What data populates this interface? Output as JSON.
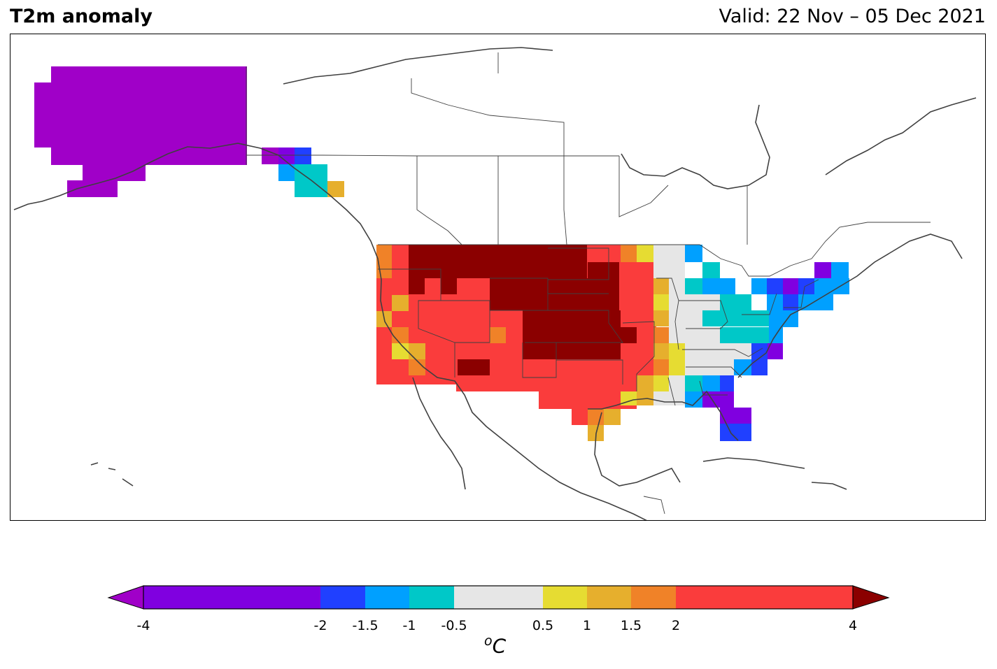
{
  "header": {
    "title": "T2m anomaly",
    "valid": "Valid: 22 Nov – 05 Dec 2021"
  },
  "colorbar": {
    "unit_prefix": "o",
    "unit": "C",
    "ticks": [
      "-4",
      "-2",
      "-1.5",
      "-1",
      "-0.5",
      "0.5",
      "1",
      "1.5",
      "2",
      "4"
    ],
    "bins": [
      {
        "from": -4,
        "to": -2,
        "color": "#8000e0"
      },
      {
        "from": -2,
        "to": -1.5,
        "color": "#2040ff"
      },
      {
        "from": -1.5,
        "to": -1,
        "color": "#00a0ff"
      },
      {
        "from": -1,
        "to": -0.5,
        "color": "#00c8c8"
      },
      {
        "from": -0.5,
        "to": 0.5,
        "color": "#e6e6e6"
      },
      {
        "from": 0.5,
        "to": 1,
        "color": "#e6dc32"
      },
      {
        "from": 1,
        "to": 1.5,
        "color": "#e6af2d"
      },
      {
        "from": 1.5,
        "to": 2,
        "color": "#f08228"
      },
      {
        "from": 2,
        "to": 4,
        "color": "#fa3c3c"
      }
    ],
    "under_color": "#a000c8",
    "over_color": "#8b0000"
  }
}
